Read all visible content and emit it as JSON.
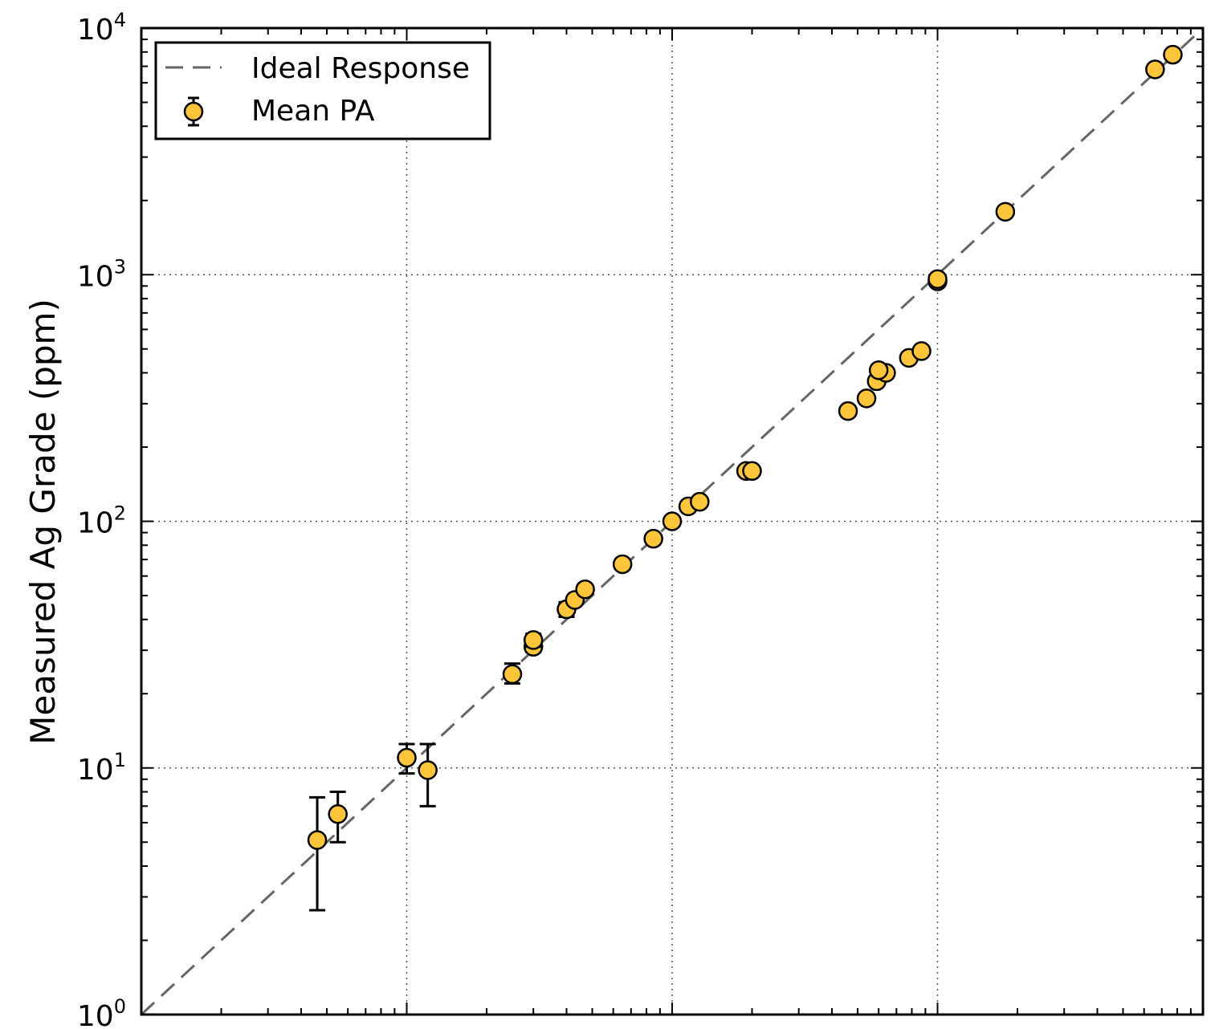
{
  "chart_data": {
    "type": "scatter",
    "title": "",
    "xlabel": "",
    "ylabel": "Measured Ag Grade (ppm)",
    "xscale": "log",
    "yscale": "log",
    "xlim": [
      1,
      10000
    ],
    "ylim": [
      1,
      10000
    ],
    "grid": true,
    "legend_position": "top-left",
    "y_tick_labels": [
      {
        "value": 1,
        "base": "10",
        "exp": "0"
      },
      {
        "value": 10,
        "base": "10",
        "exp": "1"
      },
      {
        "value": 100,
        "base": "10",
        "exp": "2"
      },
      {
        "value": 1000,
        "base": "10",
        "exp": "3"
      },
      {
        "value": 10000,
        "base": "10",
        "exp": "4"
      }
    ],
    "legend": [
      {
        "label": "Ideal Response",
        "style": "dashed-line"
      },
      {
        "label": "Mean PA",
        "style": "marker-errorbar"
      }
    ],
    "series": [
      {
        "name": "Ideal Response",
        "kind": "line",
        "x": [
          1,
          10000
        ],
        "y": [
          1,
          10000
        ],
        "color": "#666666"
      },
      {
        "name": "Mean PA",
        "kind": "errorbar",
        "color": "#fdc53a",
        "points": [
          {
            "x": 4.6,
            "y": 5.1,
            "ylo": 2.65,
            "yhi": 7.6
          },
          {
            "x": 5.5,
            "y": 6.5,
            "ylo": 5.0,
            "yhi": 8.0
          },
          {
            "x": 10.0,
            "y": 11.0,
            "ylo": 9.5,
            "yhi": 12.5
          },
          {
            "x": 12.0,
            "y": 9.8,
            "ylo": 7.0,
            "yhi": 12.5
          },
          {
            "x": 25.0,
            "y": 24.0,
            "ylo": 22.0,
            "yhi": 26.5
          },
          {
            "x": 30.0,
            "y": 31.0,
            "ylo": 29.5,
            "yhi": 32.5
          },
          {
            "x": 30.0,
            "y": 33.0,
            "ylo": 31.0,
            "yhi": 35.0
          },
          {
            "x": 40.0,
            "y": 44.0,
            "ylo": 41.0,
            "yhi": 47.0
          },
          {
            "x": 43.0,
            "y": 48.0,
            "ylo": 46.0,
            "yhi": 50.0
          },
          {
            "x": 47.0,
            "y": 53.0,
            "ylo": 51.0,
            "yhi": 55.0
          },
          {
            "x": 65.0,
            "y": 67.0,
            "ylo": 64.0,
            "yhi": 70.0
          },
          {
            "x": 85.0,
            "y": 85.0,
            "ylo": 83.0,
            "yhi": 87.0
          },
          {
            "x": 100.0,
            "y": 100.0,
            "ylo": 98.0,
            "yhi": 102.0
          },
          {
            "x": 115.0,
            "y": 115.0,
            "ylo": 113.0,
            "yhi": 117.0
          },
          {
            "x": 127.0,
            "y": 120.0,
            "ylo": 118.0,
            "yhi": 122.0
          },
          {
            "x": 190.0,
            "y": 160.0,
            "ylo": 157.0,
            "yhi": 163.0
          },
          {
            "x": 200.0,
            "y": 160.0,
            "ylo": 157.0,
            "yhi": 163.0
          },
          {
            "x": 460.0,
            "y": 280.0,
            "ylo": 275.0,
            "yhi": 285.0
          },
          {
            "x": 540.0,
            "y": 315.0,
            "ylo": 310.0,
            "yhi": 320.0
          },
          {
            "x": 590.0,
            "y": 370.0,
            "ylo": 364.0,
            "yhi": 376.0
          },
          {
            "x": 640.0,
            "y": 400.0,
            "ylo": 394.0,
            "yhi": 406.0
          },
          {
            "x": 600.0,
            "y": 410.0,
            "ylo": 404.0,
            "yhi": 416.0
          },
          {
            "x": 780.0,
            "y": 460.0,
            "ylo": 453.0,
            "yhi": 467.0
          },
          {
            "x": 870.0,
            "y": 490.0,
            "ylo": 483.0,
            "yhi": 497.0
          },
          {
            "x": 1000.0,
            "y": 940.0,
            "ylo": 930.0,
            "yhi": 950.0
          },
          {
            "x": 1000.0,
            "y": 960.0,
            "ylo": 950.0,
            "yhi": 970.0
          },
          {
            "x": 1800.0,
            "y": 1800.0,
            "ylo": 1780.0,
            "yhi": 1820.0
          },
          {
            "x": 6600.0,
            "y": 6800.0,
            "ylo": 6750.0,
            "yhi": 6850.0
          },
          {
            "x": 7700.0,
            "y": 7800.0,
            "ylo": 7750.0,
            "yhi": 7850.0
          }
        ]
      }
    ]
  }
}
